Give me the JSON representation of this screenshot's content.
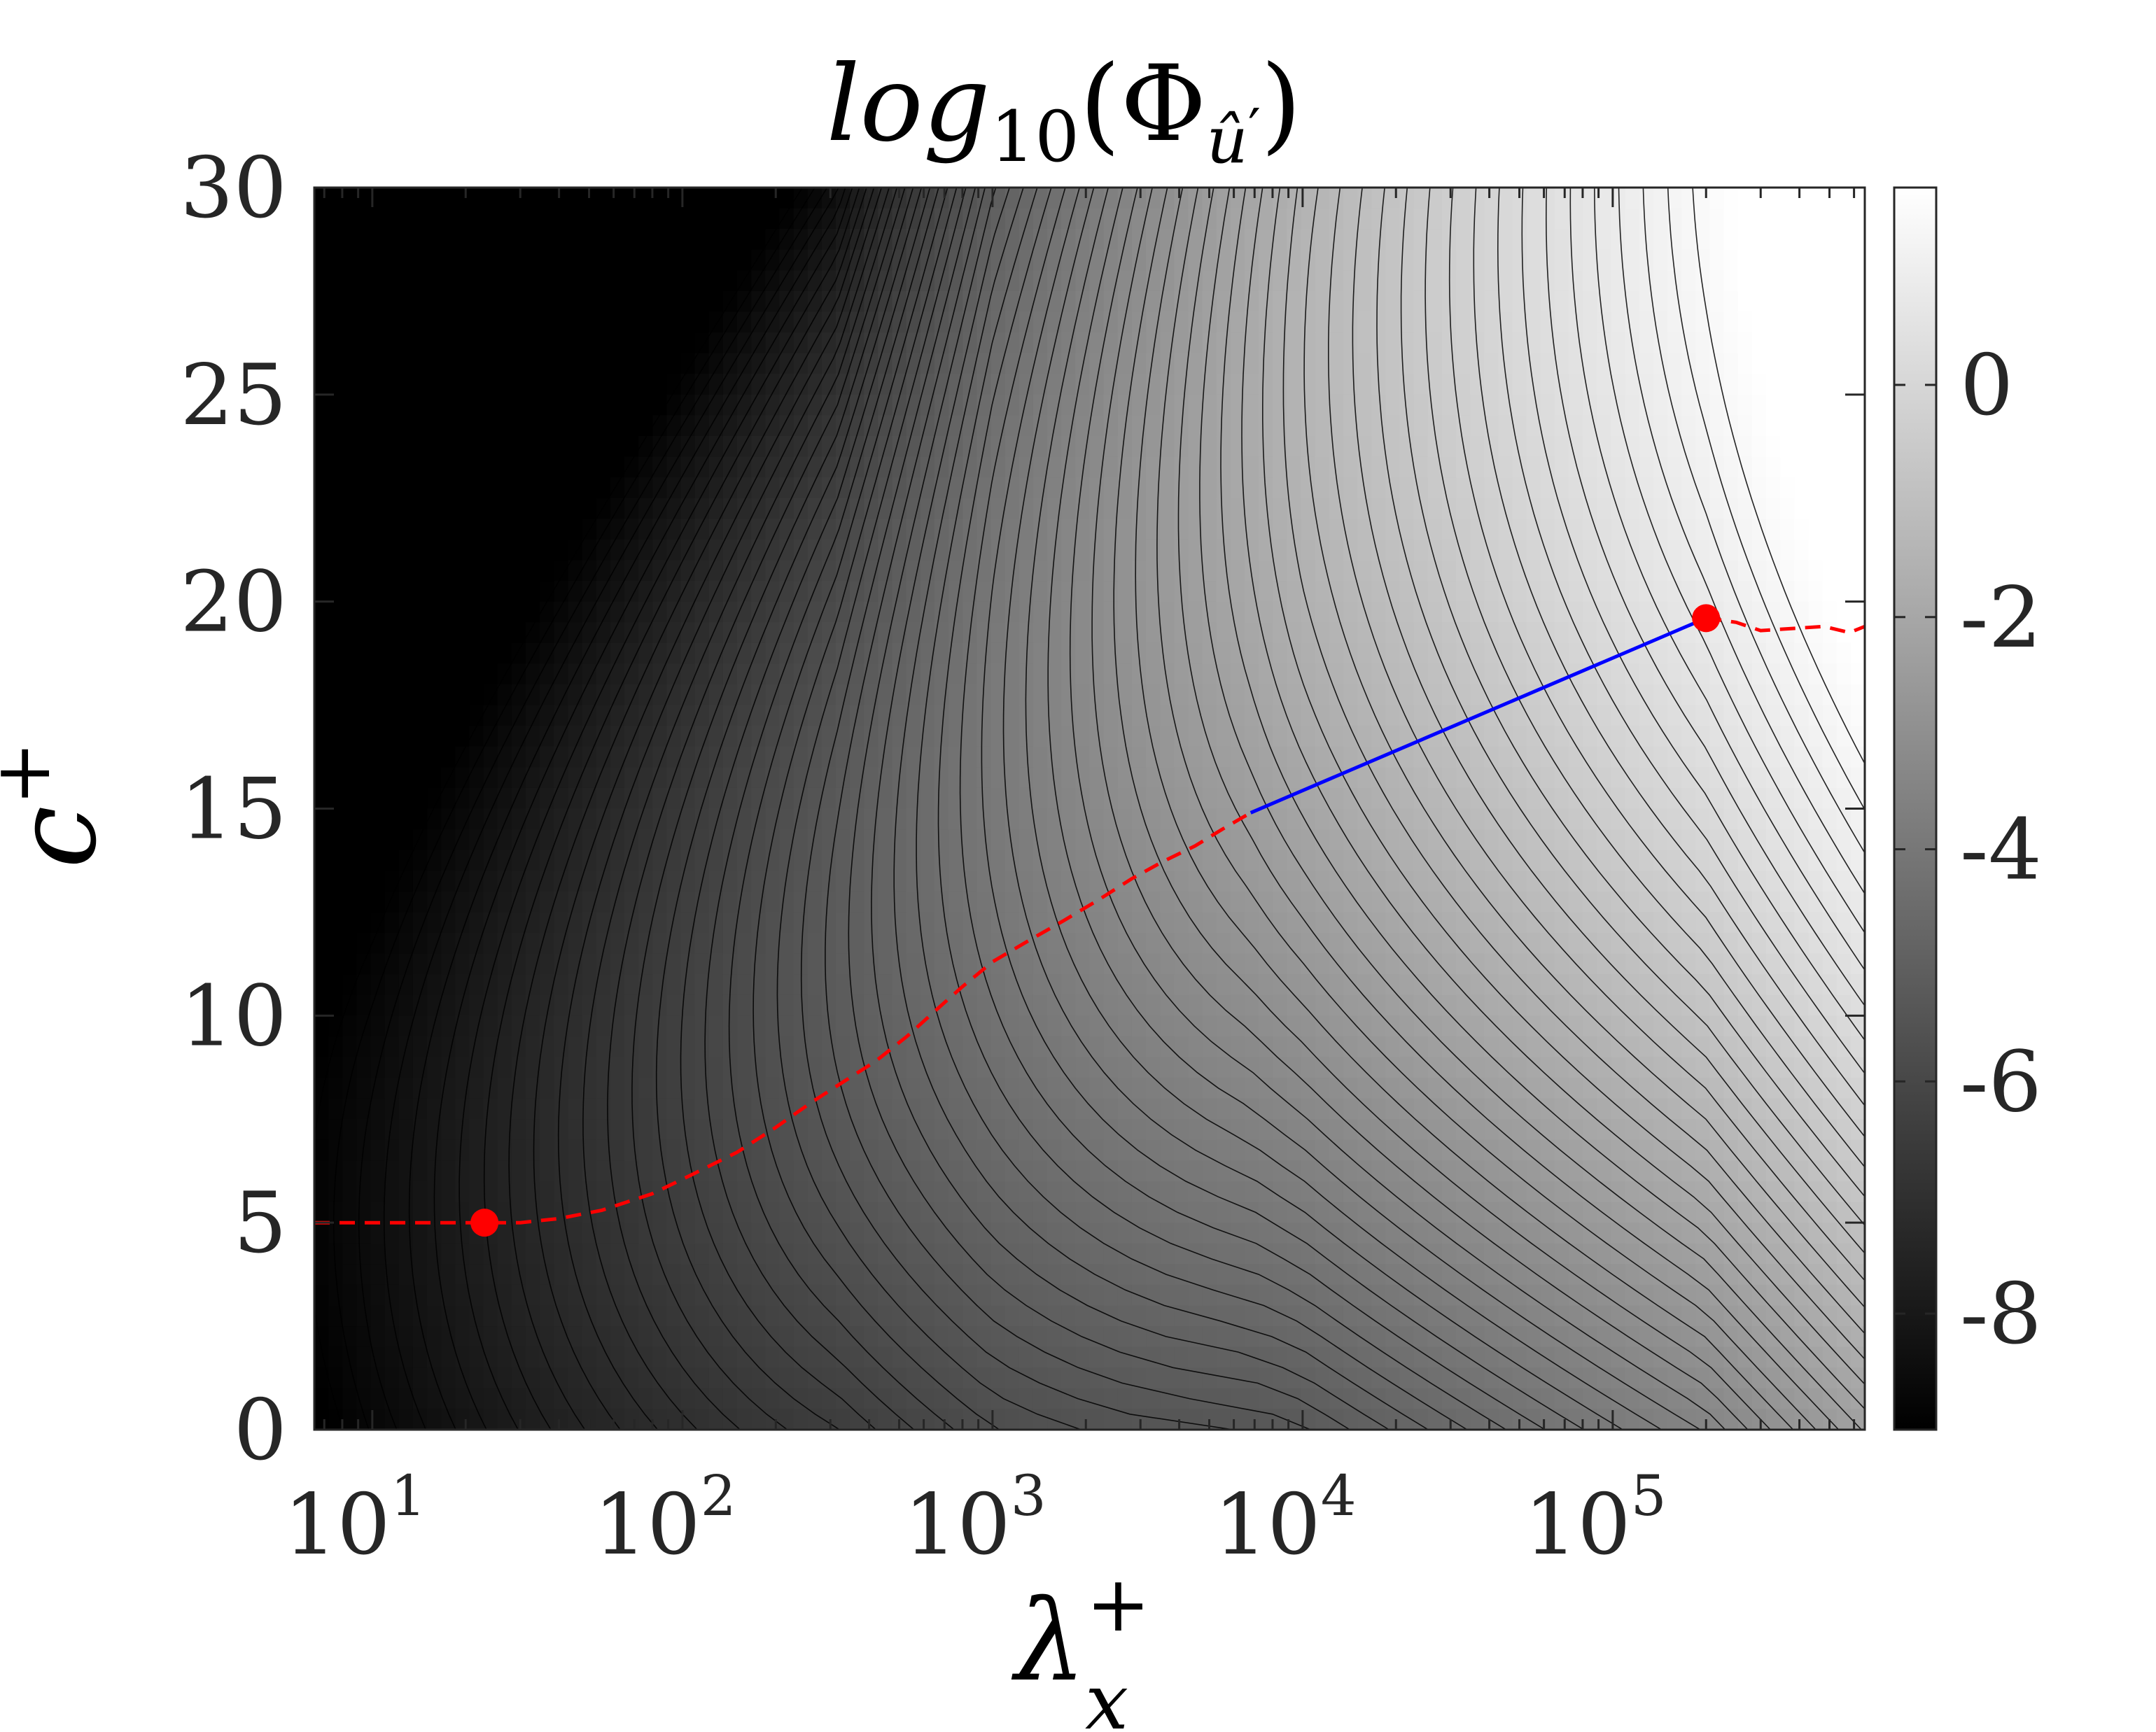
{
  "chart_data": {
    "type": "heatmap",
    "title": {
      "base": "log",
      "sub": "10",
      "phi": "(Φ",
      "hat": "û",
      "prime": "′",
      "close": ")"
    },
    "xlabel": {
      "symbol": "λ",
      "sup": "+",
      "sub": "x"
    },
    "ylabel": {
      "symbol": "c",
      "sup": "+"
    },
    "x_scale": "log",
    "xlim": [
      6.5,
      650000
    ],
    "ylim": [
      0,
      30
    ],
    "x_ticks": [
      {
        "base": "10",
        "exp": "1",
        "value": 10
      },
      {
        "base": "10",
        "exp": "2",
        "value": 100
      },
      {
        "base": "10",
        "exp": "3",
        "value": 1000
      },
      {
        "base": "10",
        "exp": "4",
        "value": 10000
      },
      {
        "base": "10",
        "exp": "5",
        "value": 100000
      }
    ],
    "y_ticks": [
      {
        "label": "0",
        "value": 0
      },
      {
        "label": "5",
        "value": 5
      },
      {
        "label": "10",
        "value": 10
      },
      {
        "label": "15",
        "value": 15
      },
      {
        "label": "20",
        "value": 20
      },
      {
        "label": "25",
        "value": 25
      },
      {
        "label": "30",
        "value": 30
      }
    ],
    "colorbar": {
      "colormap": "gray",
      "range": [
        -9,
        1.7
      ],
      "ticks": [
        {
          "label": "0",
          "value": 0
        },
        {
          "label": "-2",
          "value": -2
        },
        {
          "label": "-4",
          "value": -4
        },
        {
          "label": "-6",
          "value": -6
        },
        {
          "label": "-8",
          "value": -8
        }
      ]
    },
    "field": {
      "description_values": "log10 spectrum; darkest at small wavelengths, brightest near (2e5, 19.5)",
      "peak_point": {
        "x": 200000,
        "y": 19.6
      },
      "contour_count": 60
    },
    "series": [
      {
        "style": "red dashed",
        "color": "#ff0000",
        "x": [
          6.5,
          10,
          15,
          23,
          30,
          40,
          55,
          80,
          110,
          150,
          200,
          260,
          330,
          420,
          530,
          650,
          800,
          1000,
          1300,
          1700,
          2200,
          2800,
          3500,
          4500,
          5500,
          6800
        ],
        "y": [
          5.0,
          5.0,
          5.0,
          5.0,
          5.0,
          5.1,
          5.3,
          5.7,
          6.2,
          6.7,
          7.3,
          7.9,
          8.4,
          8.9,
          9.5,
          10.1,
          10.7,
          11.3,
          11.8,
          12.3,
          12.8,
          13.3,
          13.7,
          14.1,
          14.5,
          14.9
        ]
      },
      {
        "style": "red dashed",
        "color": "#ff0000",
        "x": [
          200000,
          250000,
          300000,
          380000,
          480000,
          580000,
          650000
        ],
        "y": [
          19.6,
          19.5,
          19.3,
          19.35,
          19.4,
          19.25,
          19.4
        ]
      },
      {
        "style": "blue solid",
        "color": "#0000ff",
        "x": [
          6800,
          200000
        ],
        "y": [
          14.9,
          19.6
        ]
      }
    ],
    "markers": [
      {
        "x": 23,
        "y": 5.0,
        "color": "#ff0000"
      },
      {
        "x": 200000,
        "y": 19.6,
        "color": "#ff0000"
      }
    ]
  }
}
